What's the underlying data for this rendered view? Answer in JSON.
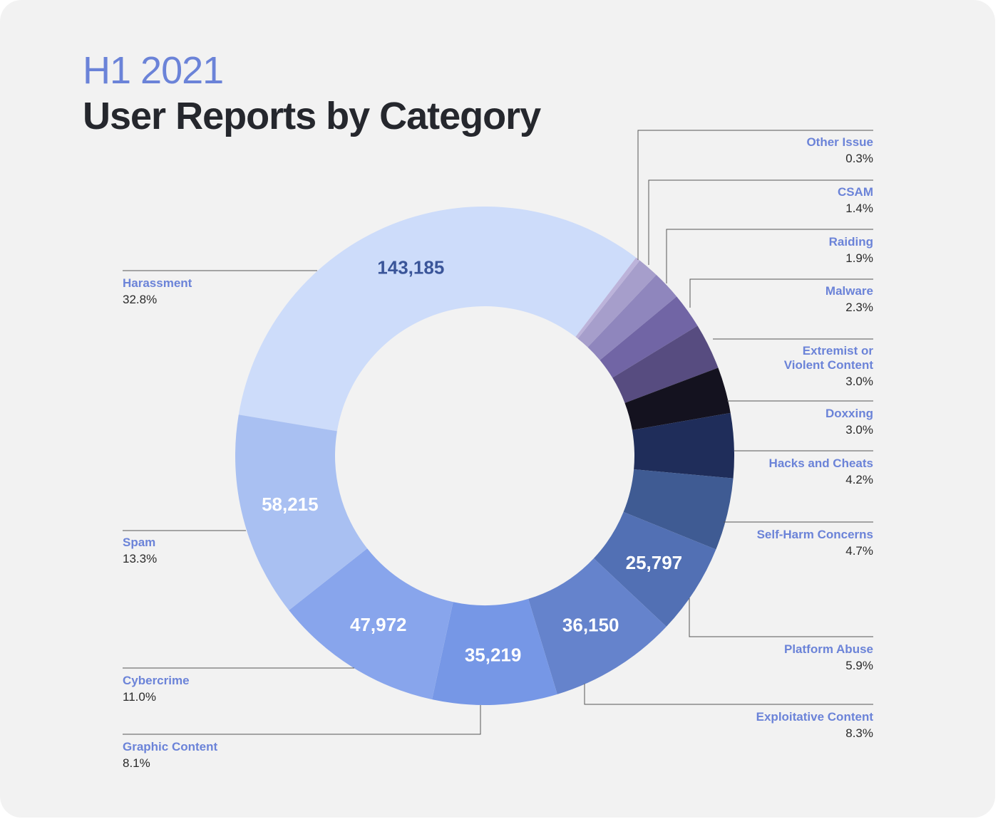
{
  "chart_data": {
    "type": "donut",
    "title": "H1 2021",
    "subtitle": "User Reports by Category",
    "categories": [
      "Harassment",
      "Other Issue",
      "CSAM",
      "Raiding",
      "Malware",
      "Extremist or\nViolent Content",
      "Doxxing",
      "Hacks and Cheats",
      "Self-Harm Concerns",
      "Platform Abuse",
      "Exploitative Content",
      "Graphic Content",
      "Cybercrime",
      "Spam"
    ],
    "values": [
      32.8,
      0.3,
      1.4,
      1.9,
      2.3,
      3.0,
      3.0,
      4.2,
      4.7,
      5.9,
      8.3,
      8.1,
      11.0,
      13.3
    ],
    "value_labels": [
      "32.8%",
      "0.3%",
      "1.4%",
      "1.9%",
      "2.3%",
      "3.0%",
      "3.0%",
      "4.2%",
      "4.7%",
      "5.9%",
      "8.3%",
      "8.1%",
      "11.0%",
      "13.3%"
    ],
    "counts": [
      143185,
      null,
      null,
      null,
      null,
      null,
      null,
      null,
      null,
      25797,
      36150,
      35219,
      47972,
      58215
    ],
    "count_labels": [
      "143,185",
      null,
      null,
      null,
      null,
      null,
      null,
      null,
      null,
      "25,797",
      "36,150",
      "35,219",
      "47,972",
      "58,215"
    ],
    "colors": [
      "#cddcfa",
      "#bcb3da",
      "#a69ecb",
      "#8f86bd",
      "#7165a5",
      "#574c80",
      "#14121f",
      "#1f2d5a",
      "#3f5b93",
      "#5270b4",
      "#6583cc",
      "#7697e6",
      "#88a5ec",
      "#a9c0f2"
    ]
  }
}
